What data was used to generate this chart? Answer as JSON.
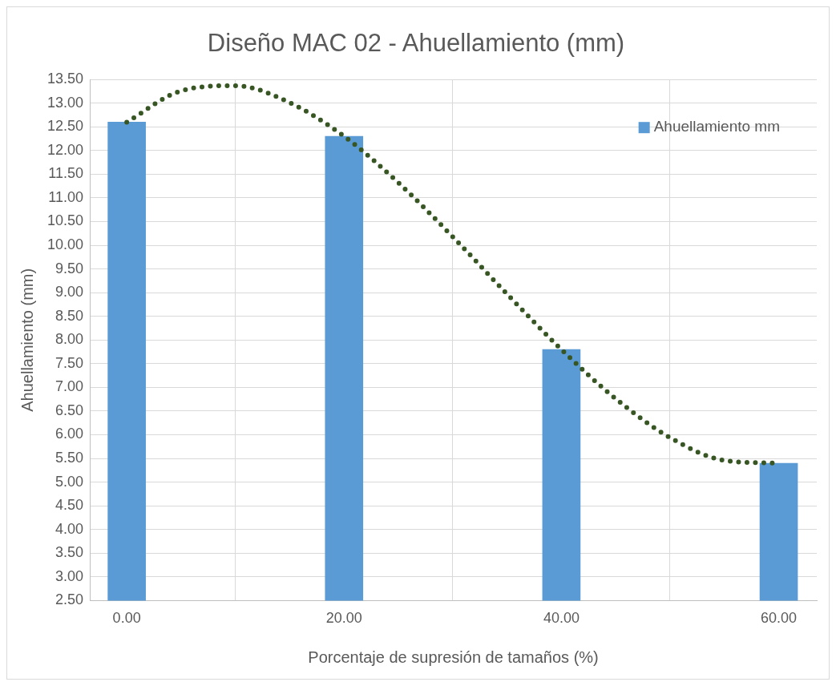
{
  "chart_data": {
    "type": "bar",
    "title": "Diseño MAC 02 - Ahuellamiento (mm)",
    "xlabel": "Porcentaje de supresión de tamaños (%)",
    "ylabel": "Ahuellamiento (mm)",
    "x": [
      0,
      20,
      40,
      60
    ],
    "series": [
      {
        "name": "Ahuellamiento mm",
        "color": "#5b9bd5",
        "values": [
          12.6,
          12.3,
          7.8,
          5.4
        ]
      },
      {
        "type": "line",
        "color": "#375623",
        "line_style": "dotted",
        "x": [
          0,
          5,
          10,
          15,
          20,
          25,
          30,
          35,
          40,
          45,
          50,
          55,
          60
        ],
        "values": [
          12.6,
          13.26,
          13.37,
          13.01,
          12.3,
          11.32,
          10.18,
          8.97,
          7.8,
          6.76,
          5.94,
          5.46,
          5.4
        ]
      }
    ],
    "xlim": [
      -3.4,
      63.5
    ],
    "xticks": [
      {
        "value": 0,
        "label": "0.00"
      },
      {
        "value": 20,
        "label": "20.00"
      },
      {
        "value": 40,
        "label": "40.00"
      },
      {
        "value": 60,
        "label": "60.00"
      }
    ],
    "ylim": [
      2.5,
      13.5
    ],
    "yticks": [
      {
        "value": 2.5,
        "label": "2.50"
      },
      {
        "value": 3,
        "label": "3.00"
      },
      {
        "value": 3.5,
        "label": "3.50"
      },
      {
        "value": 4,
        "label": "4.00"
      },
      {
        "value": 4.5,
        "label": "4.50"
      },
      {
        "value": 5,
        "label": "5.00"
      },
      {
        "value": 5.5,
        "label": "5.50"
      },
      {
        "value": 6,
        "label": "6.00"
      },
      {
        "value": 6.5,
        "label": "6.50"
      },
      {
        "value": 7,
        "label": "7.00"
      },
      {
        "value": 7.5,
        "label": "7.50"
      },
      {
        "value": 8,
        "label": "8.00"
      },
      {
        "value": 8.5,
        "label": "8.50"
      },
      {
        "value": 9,
        "label": "9.00"
      },
      {
        "value": 9.5,
        "label": "9.50"
      },
      {
        "value": 10,
        "label": "10.00"
      },
      {
        "value": 10.5,
        "label": "10.50"
      },
      {
        "value": 11,
        "label": "11.00"
      },
      {
        "value": 11.5,
        "label": "11.50"
      },
      {
        "value": 12,
        "label": "12.00"
      },
      {
        "value": 12.5,
        "label": "12.50"
      },
      {
        "value": 13,
        "label": "13.00"
      },
      {
        "value": 13.5,
        "label": "13.50"
      }
    ],
    "grid": true,
    "legend": "top right",
    "marker": "none"
  }
}
